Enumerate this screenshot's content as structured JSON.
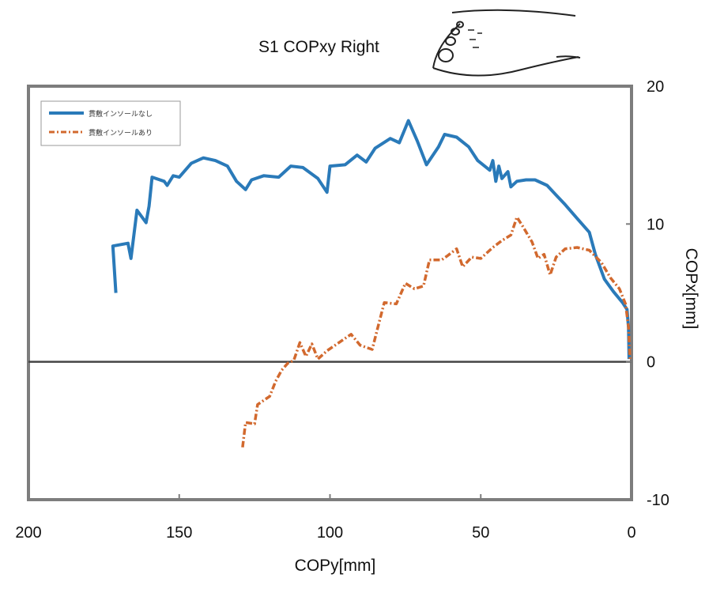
{
  "chart_data": {
    "type": "line",
    "title": "S1 COPxy Right",
    "xlabel": "COPy[mm]",
    "ylabel": "COPx[mm]",
    "xlim": [
      200,
      0
    ],
    "ylim": [
      -10,
      20
    ],
    "xticks": [
      200,
      150,
      100,
      50,
      0
    ],
    "yticks": [
      20,
      10,
      0,
      -10
    ],
    "x_reversed": true,
    "y_axis_side": "right",
    "zero_line": 0,
    "legend": {
      "position": "top-left"
    },
    "series": [
      {
        "name": "貫敷インソールなし",
        "color": "#2a7ab9",
        "style": "solid",
        "points": [
          [
            171,
            5
          ],
          [
            172,
            8.4
          ],
          [
            167,
            8.6
          ],
          [
            166,
            7.5
          ],
          [
            164,
            11
          ],
          [
            161,
            10.1
          ],
          [
            160,
            11.3
          ],
          [
            159,
            13.4
          ],
          [
            155,
            13.1
          ],
          [
            154,
            12.8
          ],
          [
            152,
            13.5
          ],
          [
            150,
            13.4
          ],
          [
            146,
            14.4
          ],
          [
            142,
            14.8
          ],
          [
            138,
            14.6
          ],
          [
            134,
            14.2
          ],
          [
            131,
            13.1
          ],
          [
            128,
            12.5
          ],
          [
            126,
            13.2
          ],
          [
            122,
            13.5
          ],
          [
            117,
            13.4
          ],
          [
            113,
            14.2
          ],
          [
            109,
            14.1
          ],
          [
            104,
            13.3
          ],
          [
            101,
            12.3
          ],
          [
            100,
            14.2
          ],
          [
            95,
            14.3
          ],
          [
            91,
            15
          ],
          [
            88,
            14.5
          ],
          [
            85,
            15.5
          ],
          [
            80,
            16.2
          ],
          [
            77,
            15.9
          ],
          [
            74,
            17.5
          ],
          [
            71,
            16
          ],
          [
            68,
            14.3
          ],
          [
            64,
            15.6
          ],
          [
            62,
            16.5
          ],
          [
            58,
            16.3
          ],
          [
            54,
            15.6
          ],
          [
            51,
            14.6
          ],
          [
            47,
            13.9
          ],
          [
            46,
            14.6
          ],
          [
            45,
            13.1
          ],
          [
            44,
            14.2
          ],
          [
            43,
            13.3
          ],
          [
            41,
            13.8
          ],
          [
            40,
            12.7
          ],
          [
            38,
            13.1
          ],
          [
            35,
            13.2
          ],
          [
            32,
            13.2
          ],
          [
            28,
            12.8
          ],
          [
            25,
            12.1
          ],
          [
            22,
            11.4
          ],
          [
            18,
            10.4
          ],
          [
            14,
            9.4
          ],
          [
            12,
            7.8
          ],
          [
            9,
            6
          ],
          [
            6,
            5.1
          ],
          [
            3,
            4.3
          ],
          [
            1.5,
            3.8
          ],
          [
            1,
            2.5
          ],
          [
            0.8,
            0.2
          ]
        ]
      },
      {
        "name": "貫敷インソールあり",
        "color": "#d2692e",
        "style": "dashdot",
        "points": [
          [
            129,
            -6.2
          ],
          [
            128,
            -4.4
          ],
          [
            125,
            -4.5
          ],
          [
            124,
            -3.1
          ],
          [
            120,
            -2.5
          ],
          [
            118,
            -1.4
          ],
          [
            116,
            -0.6
          ],
          [
            114,
            -0.1
          ],
          [
            112,
            0.1
          ],
          [
            110,
            1.4
          ],
          [
            108,
            0.4
          ],
          [
            106,
            1.3
          ],
          [
            104,
            0.2
          ],
          [
            101,
            0.8
          ],
          [
            97,
            1.4
          ],
          [
            93,
            2
          ],
          [
            90,
            1.2
          ],
          [
            86,
            0.9
          ],
          [
            84,
            2.6
          ],
          [
            82,
            4.3
          ],
          [
            78,
            4.2
          ],
          [
            75,
            5.7
          ],
          [
            72,
            5.3
          ],
          [
            69,
            5.5
          ],
          [
            67,
            7.4
          ],
          [
            63,
            7.4
          ],
          [
            61,
            7.7
          ],
          [
            58,
            8.2
          ],
          [
            56,
            6.9
          ],
          [
            53,
            7.6
          ],
          [
            50,
            7.5
          ],
          [
            46,
            8.3
          ],
          [
            43,
            8.8
          ],
          [
            40,
            9.2
          ],
          [
            38,
            10.5
          ],
          [
            36,
            9.8
          ],
          [
            33,
            8.7
          ],
          [
            31,
            7.5
          ],
          [
            29,
            7.8
          ],
          [
            27,
            6.3
          ],
          [
            25,
            7.6
          ],
          [
            22,
            8.2
          ],
          [
            18,
            8.3
          ],
          [
            14,
            8.1
          ],
          [
            10,
            7.2
          ],
          [
            7,
            6.1
          ],
          [
            4,
            5.3
          ],
          [
            2,
            4.2
          ],
          [
            1,
            2.5
          ],
          [
            0.5,
            0.1
          ]
        ]
      }
    ]
  }
}
